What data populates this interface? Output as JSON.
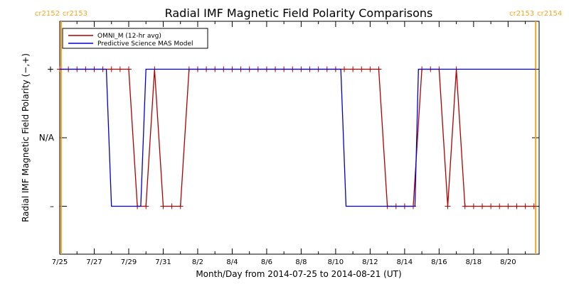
{
  "chart_data": {
    "type": "line",
    "title": "Radial IMF Magnetic Field Polarity Comparisons",
    "xlabel": "Month/Day from 2014-07-25 to 2014-08-21 (UT)",
    "ylabel": "Radial IMF Magnetic Field Polarity (−,+)",
    "xlim": [
      0.0,
      27.8
    ],
    "ylim": [
      -1.7,
      1.7
    ],
    "x_tick_values": [
      0,
      2,
      4,
      6,
      8,
      10,
      12,
      14,
      16,
      18,
      20,
      22,
      24,
      26
    ],
    "x_tick_labels": [
      "7/25",
      "7/27",
      "7/29",
      "7/31",
      "8/2",
      "8/4",
      "8/6",
      "8/8",
      "8/10",
      "8/12",
      "8/14",
      "8/16",
      "8/18",
      "8/20"
    ],
    "y_tick_values": [
      1,
      0,
      -1
    ],
    "y_tick_labels": [
      "+",
      "N/A",
      "–"
    ],
    "grid": false,
    "legend_position": "top-left",
    "carrington_markers": [
      {
        "x": 0.08,
        "left_label": "cr2152",
        "right_label": "cr2153",
        "color": "#f5a623"
      },
      {
        "x": 27.6,
        "left_label": "cr2153",
        "right_label": "cr2154",
        "color": "#f5a623"
      }
    ],
    "series": [
      {
        "name": "OMNI_M (12-hr avg)",
        "color": "#b00000",
        "markers": true,
        "x": [
          0,
          0.5,
          1,
          1.5,
          2,
          2.5,
          3,
          3.5,
          4,
          4.5,
          5,
          5.5,
          6,
          6.5,
          7,
          7.5,
          8,
          8.5,
          9,
          9.5,
          10,
          10.5,
          11,
          11.5,
          12,
          12.5,
          13,
          13.5,
          14,
          14.5,
          15,
          15.5,
          16,
          16.5,
          17,
          17.5,
          18,
          18.5,
          19,
          19.5,
          20,
          20.5,
          21,
          21.5,
          22,
          22.5,
          23,
          23.5,
          24,
          24.5,
          25,
          25.5,
          26,
          26.5,
          27,
          27.5
        ],
        "y": [
          1,
          1,
          1,
          1,
          1,
          1,
          1,
          1,
          1,
          -1,
          -1,
          1,
          -1,
          -1,
          -1,
          1,
          1,
          1,
          1,
          1,
          1,
          1,
          1,
          1,
          1,
          1,
          1,
          1,
          1,
          1,
          1,
          1,
          1,
          1,
          1,
          1,
          1,
          1,
          -1,
          -1,
          -1,
          -1,
          1,
          1,
          1,
          -1,
          1,
          -1,
          -1,
          -1,
          -1,
          -1,
          -1,
          -1,
          -1,
          -1
        ]
      },
      {
        "name": "Predictive Science MAS Model",
        "color": "#0000d0",
        "markers": false,
        "x": [
          0,
          2.7,
          3.0,
          4.7,
          5.0,
          16.3,
          16.6,
          20.6,
          20.8,
          27.6
        ],
        "y": [
          1,
          1,
          -1,
          -1,
          1,
          1,
          -1,
          -1,
          1,
          1
        ]
      }
    ]
  }
}
